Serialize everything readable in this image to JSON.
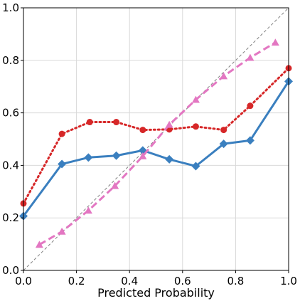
{
  "chart_data": {
    "type": "line",
    "title": "",
    "xlabel": "Predicted Probability",
    "ylabel": "",
    "xlim": [
      0.0,
      1.0
    ],
    "ylim": [
      0.0,
      1.0
    ],
    "grid": true,
    "xticks": [
      "0.0",
      "0.2",
      "0.4",
      "0.6",
      "0.8",
      "1.0"
    ],
    "yticks": [
      "0.0",
      "0.2",
      "0.4",
      "0.6",
      "0.8",
      "1.0"
    ],
    "reference_line": {
      "x": [
        0.0,
        1.0
      ],
      "y": [
        0.0,
        1.0
      ],
      "color": "#808080",
      "style": "dashed"
    },
    "series": [
      {
        "color": "#3a7fbf",
        "line_style": "solid",
        "marker": "diamond",
        "x": [
          0.0,
          0.145,
          0.245,
          0.35,
          0.45,
          0.55,
          0.65,
          0.755,
          0.855,
          1.0
        ],
        "y": [
          0.207,
          0.405,
          0.43,
          0.437,
          0.457,
          0.423,
          0.397,
          0.482,
          0.495,
          0.72
        ]
      },
      {
        "color": "#d62728",
        "line_style": "dotted",
        "marker": "circle",
        "x": [
          0.0,
          0.145,
          0.25,
          0.35,
          0.45,
          0.55,
          0.65,
          0.755,
          0.855,
          1.0
        ],
        "y": [
          0.255,
          0.52,
          0.565,
          0.565,
          0.535,
          0.537,
          0.548,
          0.535,
          0.627,
          0.77
        ]
      },
      {
        "color": "#e377c2",
        "line_style": "dashed",
        "marker": "triangle",
        "x": [
          0.06,
          0.145,
          0.245,
          0.345,
          0.45,
          0.55,
          0.65,
          0.755,
          0.855,
          0.95
        ],
        "y": [
          0.098,
          0.148,
          0.228,
          0.322,
          0.435,
          0.555,
          0.65,
          0.74,
          0.81,
          0.868
        ]
      }
    ]
  }
}
